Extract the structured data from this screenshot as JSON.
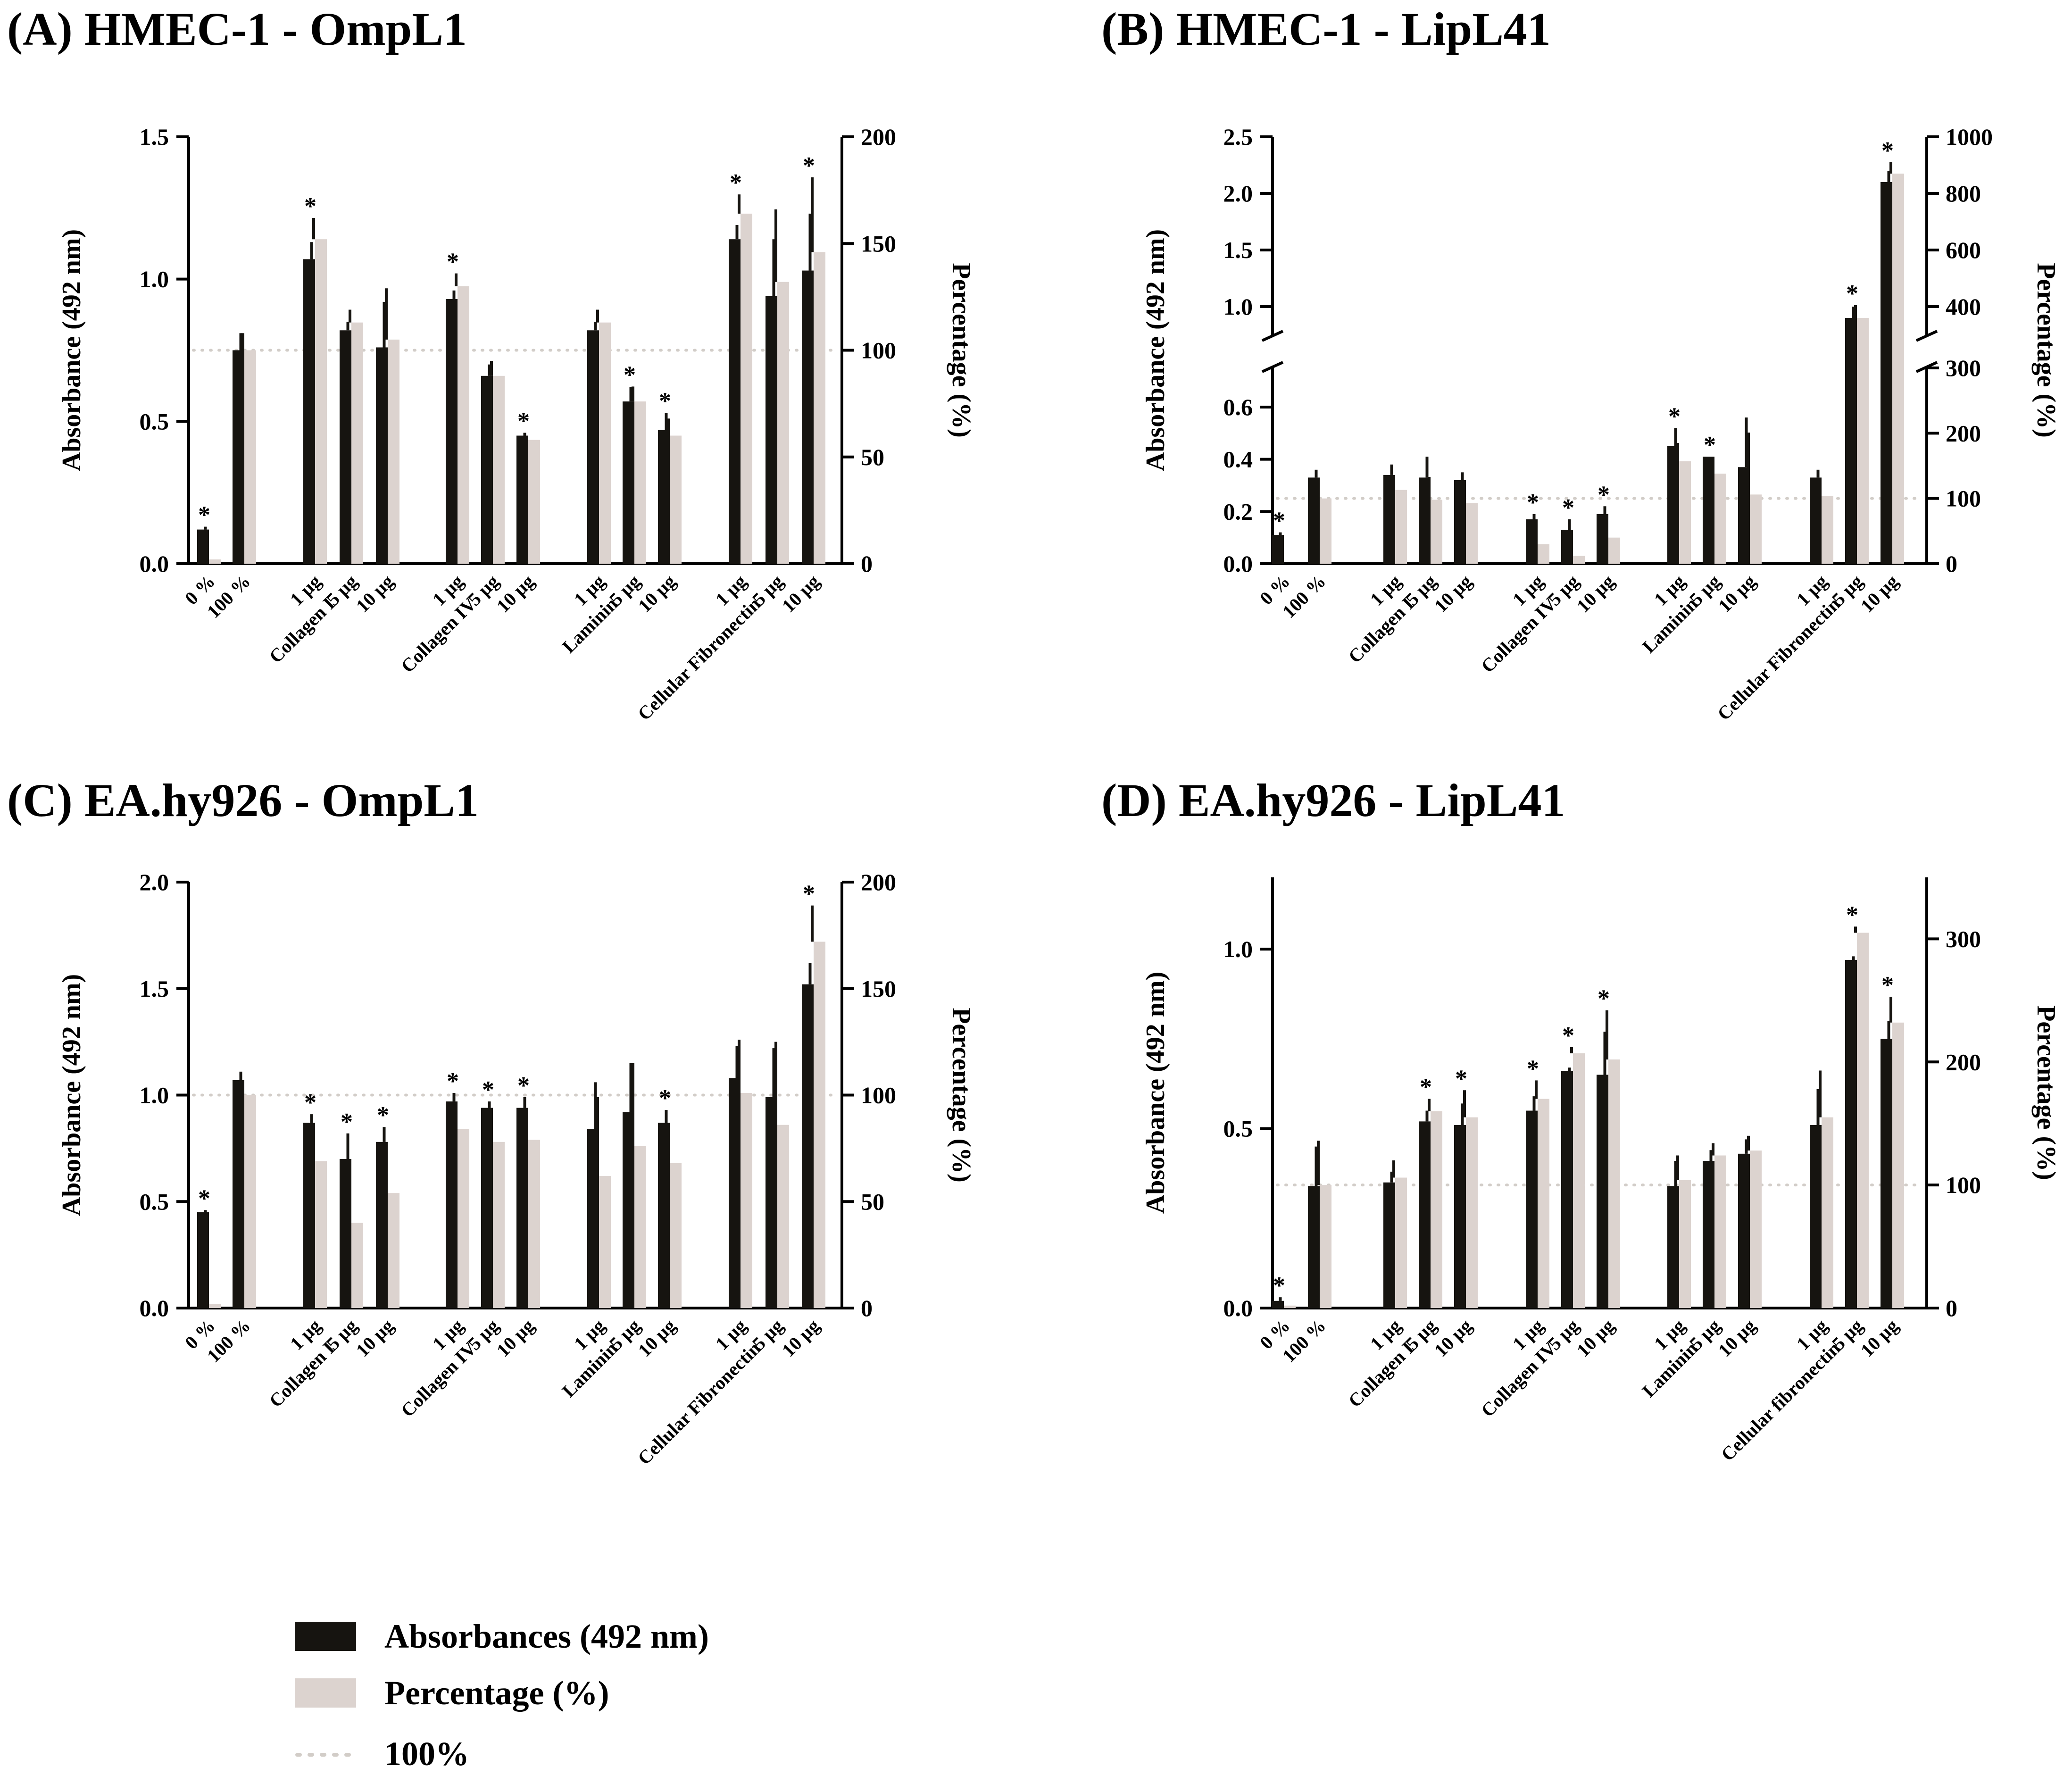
{
  "colors": {
    "absorbance": "#161410",
    "percentage": "#dcd3cf",
    "reference": "#d2cdc8",
    "axis": "#000000"
  },
  "legend": {
    "absorbance": "Absorbances (492 nm)",
    "percentage": "Percentage (%)",
    "reference": "100%"
  },
  "chart_data": [
    {
      "type": "bar",
      "panel": "A",
      "title": "(A) HMEC-1 - OmpL1",
      "ylabel": "Absorbance (492 nm)",
      "y2label": "Percentage (%)",
      "ylim": [
        0,
        1.5
      ],
      "yticks": [
        "0.0",
        "0.5",
        "1.0",
        "1.5"
      ],
      "y2lim": [
        0,
        200
      ],
      "y2ticks": [
        "0",
        "50",
        "100",
        "150",
        "200"
      ],
      "reference_line": 100,
      "groups": [
        "Collagen I",
        "Collagen IV",
        "Laminin",
        "Cellular Fibronectin"
      ],
      "categories": [
        "0 %",
        "100 %",
        "1 µg",
        "5 µg",
        "10 µg",
        "1 µg",
        "5 µg",
        "10 µg",
        "1 µg",
        "5 µg",
        "10 µg",
        "1 µg",
        "5 µg",
        "10 µg"
      ],
      "series": [
        {
          "name": "Absorbances (492 nm)",
          "values": [
            0.12,
            0.75,
            1.07,
            0.82,
            0.76,
            0.93,
            0.66,
            0.45,
            0.82,
            0.57,
            0.47,
            1.14,
            0.94,
            1.03
          ],
          "errors": [
            0.01,
            0.06,
            0.06,
            0.03,
            0.16,
            0.03,
            0.04,
            0.01,
            0.03,
            0.05,
            0.06,
            0.05,
            0.2,
            0.2
          ]
        },
        {
          "name": "Percentage (%)",
          "values": [
            2,
            100,
            152,
            113,
            105,
            130,
            88,
            58,
            113,
            76,
            60,
            164,
            132,
            146
          ],
          "errors": [
            1,
            8,
            10,
            6,
            24,
            6,
            7,
            2,
            6,
            7,
            8,
            9,
            34,
            35
          ]
        }
      ],
      "significant": [
        true,
        false,
        true,
        false,
        false,
        true,
        false,
        true,
        false,
        true,
        true,
        true,
        false,
        true
      ]
    },
    {
      "type": "bar",
      "panel": "B",
      "title": "(B) HMEC-1 - LipL41",
      "ylabel": "Absorbance (492 nm)",
      "y2label": "Percentage (%)",
      "ylim_lower": [
        0,
        0.75
      ],
      "ylim_upper": [
        0.75,
        2.5
      ],
      "yticks": [
        "0.0",
        "0.2",
        "0.4",
        "0.6",
        "1.0",
        "1.5",
        "2.0",
        "2.5"
      ],
      "y2lim_lower": [
        0,
        300
      ],
      "y2lim_upper": [
        300,
        1000
      ],
      "y2ticks": [
        "0",
        "100",
        "200",
        "300",
        "400",
        "600",
        "800",
        "1000"
      ],
      "reference_line": 100,
      "groups": [
        "Collagen I",
        "Collagen IV",
        "Laminin",
        "Cellular Fibronectin"
      ],
      "categories": [
        "0 %",
        "100 %",
        "1 µg",
        "5 µg",
        "10 µg",
        "1 µg",
        "5 µg",
        "10 µg",
        "1 µg",
        "5 µg",
        "10 µg",
        "1 µg",
        "5 µg",
        "10 µg"
      ],
      "series": [
        {
          "name": "Absorbances (492 nm)",
          "values": [
            0.11,
            0.33,
            0.34,
            0.33,
            0.32,
            0.17,
            0.13,
            0.19,
            0.45,
            0.41,
            0.37,
            0.33,
            0.9,
            2.1
          ],
          "errors": [
            0.01,
            0.03,
            0.04,
            0.08,
            0.03,
            0.02,
            0.04,
            0.03,
            0.07,
            0.0,
            0.19,
            0.03,
            0.1,
            0.1
          ]
        },
        {
          "name": "Percentage (%)",
          "values": [
            0,
            100,
            113,
            98,
            93,
            30,
            12,
            40,
            157,
            138,
            106,
            104,
            360,
            870
          ],
          "errors": [
            0,
            8,
            13,
            35,
            8,
            5,
            12,
            17,
            28,
            0,
            95,
            10,
            45,
            40
          ]
        }
      ],
      "significant": [
        true,
        false,
        false,
        false,
        false,
        true,
        true,
        true,
        true,
        true,
        false,
        false,
        true,
        true
      ]
    },
    {
      "type": "bar",
      "panel": "C",
      "title": "(C) EA.hy926 - OmpL1",
      "ylabel": "Absorbance (492 nm)",
      "y2label": "Percentage (%)",
      "ylim": [
        0,
        2.0
      ],
      "yticks": [
        "0.0",
        "0.5",
        "1.0",
        "1.5",
        "2.0"
      ],
      "y2lim": [
        0,
        200
      ],
      "y2ticks": [
        "0",
        "50",
        "100",
        "150",
        "200"
      ],
      "reference_line": 100,
      "groups": [
        "Collagen I",
        "Collagen IV",
        "Laminin",
        "Cellular Fibronectin"
      ],
      "categories": [
        "0 %",
        "100 %",
        "1 µg",
        "5 µg",
        "10 µg",
        "1 µg",
        "5 µg",
        "10 µg",
        "1 µg",
        "5 µg",
        "10 µg",
        "1 µg",
        "5 µg",
        "10 µg"
      ],
      "series": [
        {
          "name": "Absorbances (492 nm)",
          "values": [
            0.45,
            1.07,
            0.87,
            0.7,
            0.78,
            0.97,
            0.94,
            0.94,
            0.84,
            0.92,
            0.87,
            1.08,
            0.99,
            1.52
          ],
          "errors": [
            0.01,
            0.04,
            0.04,
            0.12,
            0.07,
            0.04,
            0.03,
            0.05,
            0.22,
            0.23,
            0.06,
            0.15,
            0.23,
            0.1
          ]
        },
        {
          "name": "Percentage (%)",
          "values": [
            2,
            100,
            69,
            40,
            54,
            84,
            78,
            79,
            62,
            76,
            68,
            101,
            86,
            172
          ],
          "errors": [
            1,
            7,
            8,
            20,
            11,
            8,
            6,
            8,
            37,
            39,
            11,
            25,
            39,
            17
          ]
        }
      ],
      "significant": [
        true,
        false,
        true,
        true,
        true,
        true,
        true,
        true,
        false,
        false,
        true,
        false,
        false,
        true
      ]
    },
    {
      "type": "bar",
      "panel": "D",
      "title": "(D) EA.hy926 - LipL41",
      "ylabel": "Absorbance (492 nm)",
      "y2label": "Percentage (%)",
      "ylim": [
        0,
        1.2
      ],
      "yticks": [
        "0.0",
        "0.5",
        "1.0"
      ],
      "y2lim": [
        0,
        350
      ],
      "y2ticks": [
        "0",
        "100",
        "200",
        "300"
      ],
      "reference_line": 100,
      "groups": [
        "Collagen I",
        "Collagen IV",
        "Laminin",
        "Cellular fibronectin"
      ],
      "categories": [
        "0 %",
        "100 %",
        "1 µg",
        "5 µg",
        "10 µg",
        "1 µg",
        "5 µg",
        "10 µg",
        "1 µg",
        "5 µg",
        "10 µg",
        "1 µg",
        "5 µg",
        "10 µg"
      ],
      "series": [
        {
          "name": "Absorbances (492 nm)",
          "values": [
            0.02,
            0.34,
            0.35,
            0.52,
            0.51,
            0.55,
            0.66,
            0.65,
            0.34,
            0.41,
            0.43,
            0.51,
            0.97,
            0.75
          ],
          "errors": [
            0.01,
            0.11,
            0.03,
            0.03,
            0.06,
            0.04,
            0.01,
            0.12,
            0.07,
            0.03,
            0.04,
            0.1,
            0.01,
            0.05
          ]
        },
        {
          "name": "Percentage (%)",
          "values": [
            2,
            100,
            106,
            160,
            155,
            170,
            207,
            202,
            104,
            124,
            128,
            155,
            305,
            232
          ],
          "errors": [
            1,
            36,
            14,
            10,
            22,
            15,
            5,
            40,
            20,
            10,
            12,
            38,
            5,
            21
          ]
        }
      ],
      "significant": [
        true,
        false,
        false,
        true,
        true,
        true,
        true,
        true,
        false,
        false,
        false,
        false,
        true,
        true
      ]
    }
  ]
}
